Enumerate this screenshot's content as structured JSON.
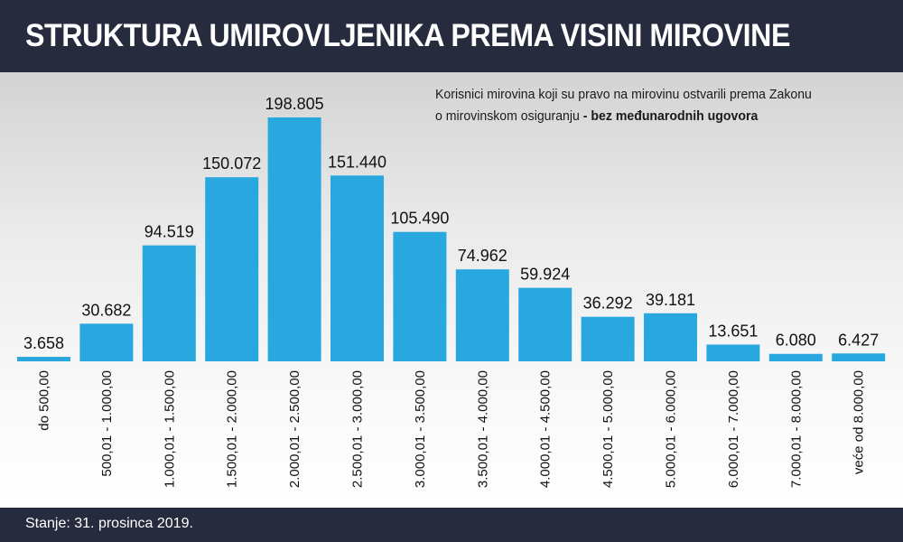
{
  "title": "STRUKTURA UMIROVLJENIKA PREMA VISINI MIROVINE",
  "note": {
    "line1": "Korisnici mirovina koji su pravo na mirovinu ostvarili prema Zakonu",
    "line2_regular": "o mirovinskom osiguranju ",
    "line2_bold": "- bez međunarodnih ugovora"
  },
  "footer": {
    "text": "Stanje: 31. prosinca 2019."
  },
  "colors": {
    "bar": "#29a8e0",
    "header": "#262b3d"
  },
  "chart_data": {
    "type": "bar",
    "categories": [
      "do 500,00",
      "500,01 - 1.000,00",
      "1.000,01 - 1.500,00",
      "1.500,01 - 2.000,00",
      "2.000,01 - 2.500,00",
      "2.500,01 - 3.000,00",
      "3.000,01 - 3.500,00",
      "3.500,01 - 4.000,00",
      "4.000,01 - 4.500,00",
      "4.500,01 - 5.000,00",
      "5.000,01 - 6.000,00",
      "6.000,01 - 7.000,00",
      "7.000,01 - 8.000,00",
      "veće od 8.000,00"
    ],
    "values": [
      3658,
      30682,
      94519,
      150072,
      198805,
      151440,
      105490,
      74962,
      59924,
      36292,
      39181,
      13651,
      6080,
      6427
    ],
    "value_labels": [
      "3.658",
      "30.682",
      "94.519",
      "150.072",
      "198.805",
      "151.440",
      "105.490",
      "74.962",
      "59.924",
      "36.292",
      "39.181",
      "13.651",
      "6.080",
      "6.427"
    ],
    "ylim": [
      0,
      198805
    ],
    "grid": false,
    "xlabel": "",
    "ylabel": ""
  }
}
